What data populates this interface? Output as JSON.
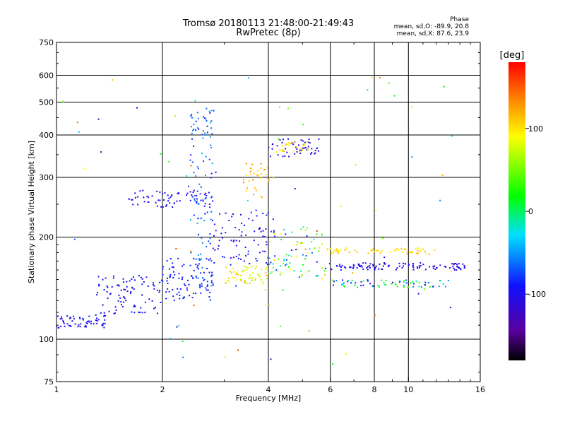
{
  "header": {
    "title_line1": "Tromsø 20180113 21:48:00-21:49:43",
    "title_line2": "RwPretec (8p)",
    "phase_label": "Phase",
    "phase_o": "mean, sd,O: -89.9, 20.8",
    "phase_x": "mean, sd,X:  87.6, 23.9"
  },
  "colorbar": {
    "unit_label": "[deg]",
    "ticks": [
      {
        "value": 100,
        "label": "100"
      },
      {
        "value": 0,
        "label": "0"
      },
      {
        "value": -100,
        "label": "-100"
      }
    ],
    "range": [
      -180,
      180
    ],
    "colormap": "rainbow"
  },
  "chart_data": {
    "type": "scatter",
    "xlabel": "Frequency [MHz]",
    "ylabel": "Stationary phase Virtual Height [km]",
    "xscale": "log",
    "yscale": "log",
    "xlim": [
      1,
      16
    ],
    "ylim": [
      75,
      750
    ],
    "xticks": [
      {
        "value": 1,
        "label": "1"
      },
      {
        "value": 2,
        "label": "2"
      },
      {
        "value": 4,
        "label": "4"
      },
      {
        "value": 6,
        "label": "6"
      },
      {
        "value": 8,
        "label": "8"
      },
      {
        "value": 10,
        "label": "10"
      },
      {
        "value": 16,
        "label": "16"
      }
    ],
    "yticks": [
      {
        "value": 75,
        "label": "75"
      },
      {
        "value": 100,
        "label": "100"
      },
      {
        "value": 200,
        "label": "200"
      },
      {
        "value": 300,
        "label": "300"
      },
      {
        "value": 400,
        "label": "400"
      },
      {
        "value": 500,
        "label": "500"
      },
      {
        "value": 600,
        "label": "600"
      },
      {
        "value": 750,
        "label": "750"
      }
    ],
    "grid_x": [
      2,
      4,
      6,
      8,
      10
    ],
    "grid_y": [
      100,
      200,
      300,
      400,
      500,
      600
    ],
    "point_clusters": [
      {
        "f": [
          1.0,
          1.4
        ],
        "h": [
          108,
          118
        ],
        "phase": [
          -100,
          -90
        ],
        "n": 60
      },
      {
        "f": [
          1.3,
          2.0
        ],
        "h": [
          118,
          155
        ],
        "phase": [
          -105,
          -85
        ],
        "n": 90
      },
      {
        "f": [
          2.0,
          2.8
        ],
        "h": [
          130,
          175
        ],
        "phase": [
          -100,
          -80
        ],
        "n": 90
      },
      {
        "f": [
          1.6,
          2.8
        ],
        "h": [
          245,
          275
        ],
        "phase": [
          -110,
          -90
        ],
        "n": 70
      },
      {
        "f": [
          2.4,
          2.8
        ],
        "h": [
          140,
          480
        ],
        "phase": [
          -95,
          -40
        ],
        "n": 110
      },
      {
        "f": [
          2.8,
          4.2
        ],
        "h": [
          165,
          240
        ],
        "phase": [
          -120,
          -80
        ],
        "n": 80
      },
      {
        "f": [
          3.0,
          4.0
        ],
        "h": [
          145,
          165
        ],
        "phase": [
          60,
          120
        ],
        "n": 60
      },
      {
        "f": [
          3.4,
          4.2
        ],
        "h": [
          260,
          330
        ],
        "phase": [
          90,
          140
        ],
        "n": 35
      },
      {
        "f": [
          4.0,
          5.6
        ],
        "h": [
          345,
          390
        ],
        "phase": [
          -115,
          -95
        ],
        "n": 50
      },
      {
        "f": [
          4.2,
          5.2
        ],
        "h": [
          355,
          385
        ],
        "phase": [
          80,
          120
        ],
        "n": 25
      },
      {
        "f": [
          4.0,
          5.8
        ],
        "h": [
          150,
          215
        ],
        "phase": [
          -100,
          120
        ],
        "n": 80
      },
      {
        "f": [
          5.8,
          14.5
        ],
        "h": [
          160,
          168
        ],
        "phase": [
          -115,
          -95
        ],
        "n": 110
      },
      {
        "f": [
          5.8,
          12.0
        ],
        "h": [
          178,
          186
        ],
        "phase": [
          90,
          120
        ],
        "n": 60
      },
      {
        "f": [
          6.0,
          13.0
        ],
        "h": [
          142,
          150
        ],
        "phase": [
          -110,
          40
        ],
        "n": 70
      },
      {
        "f": [
          1.0,
          14.0
        ],
        "h": [
          80,
          620
        ],
        "phase": [
          -150,
          170
        ],
        "n": 70
      }
    ]
  }
}
